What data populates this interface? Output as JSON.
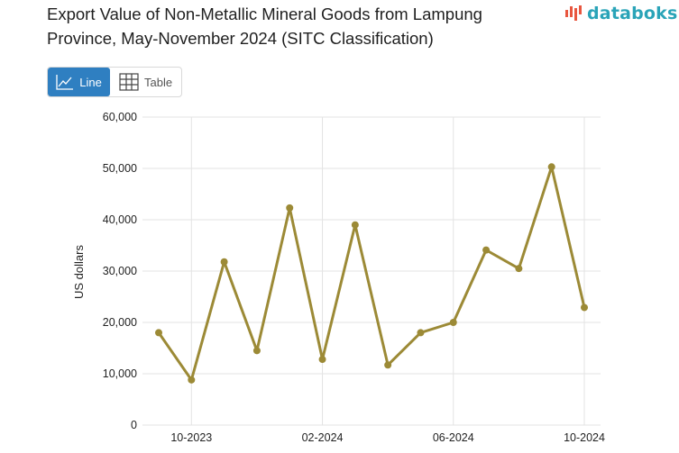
{
  "header": {
    "title": "Export Value of Non-Metallic Mineral Goods from Lampung Province, May-November 2024 (SITC Classification)",
    "logo_text": "databoks"
  },
  "view_toggle": {
    "line_label": "Line",
    "table_label": "Table",
    "selected": "Line"
  },
  "colors": {
    "series": "#9c8a36",
    "active_button": "#2f7fc1",
    "logo": "#2aa4b8",
    "grid": "#e3e3e3"
  },
  "chart_data": {
    "type": "line",
    "title": "Export Value of Non-Metallic Mineral Goods from Lampung Province, May-November 2024 (SITC Classification)",
    "ylabel": "US dollars",
    "xlabel": "",
    "ylim": [
      0,
      60000
    ],
    "yticks": [
      0,
      10000,
      20000,
      30000,
      40000,
      50000,
      60000
    ],
    "ytick_labels": [
      "0",
      "10,000",
      "20,000",
      "30,000",
      "40,000",
      "50,000",
      "60,000"
    ],
    "xticks": [
      "10-2023",
      "02-2024",
      "06-2024",
      "10-2024"
    ],
    "grid": true,
    "legend": "none",
    "series": [
      {
        "x": [
          "2023-09",
          "2023-10",
          "2023-11",
          "2023-12",
          "2024-01",
          "2024-02",
          "2024-03",
          "2024-04",
          "2024-05",
          "2024-06",
          "2024-07",
          "2024-08",
          "2024-09",
          "2024-10",
          "2024-11"
        ],
        "values": [
          18000,
          8800,
          31800,
          14500,
          42300,
          12800,
          39000,
          11700,
          18000,
          20000,
          34100,
          30500,
          50300,
          22900,
          null
        ]
      }
    ]
  }
}
